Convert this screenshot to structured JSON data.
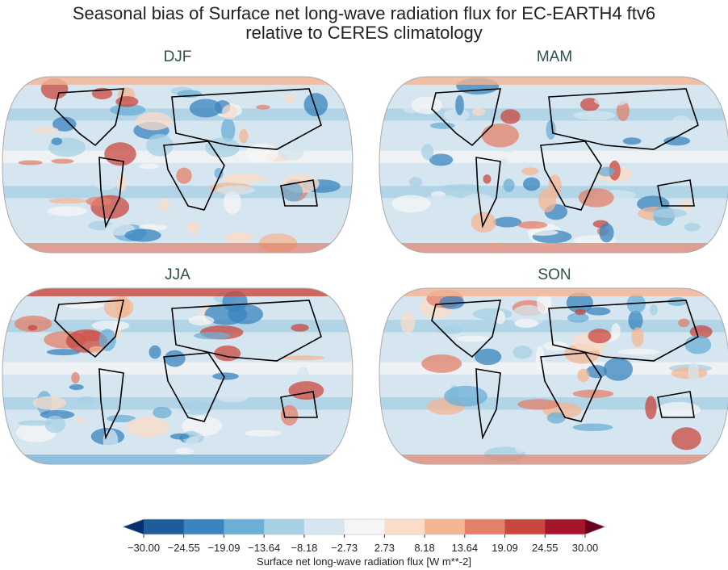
{
  "title_line1": "Seasonal bias of Surface net long-wave radiation flux for EC-EARTH4 ftv6",
  "title_line2": "relative to CERES climatology",
  "chart_data": {
    "type": "heatmap",
    "panels": [
      "DJF",
      "MAM",
      "JJA",
      "SON"
    ],
    "colorbar": {
      "label": "Surface net long-wave radiation flux [W m**-2]",
      "ticks": [
        "−30.00",
        "−24.55",
        "−19.09",
        "−13.64",
        "−8.18",
        "−2.73",
        "2.73",
        "8.18",
        "13.64",
        "19.09",
        "24.55",
        "30.00"
      ],
      "range": [
        -30,
        30
      ],
      "extend": "both",
      "colors": [
        "#053061",
        "#2166ac",
        "#4393c3",
        "#92c5de",
        "#d1e5f0",
        "#f7f7f7",
        "#fddbc7",
        "#f4a582",
        "#d6604d",
        "#b2182b",
        "#67001f"
      ],
      "colors_all": [
        "#08306b",
        "#1f5c9a",
        "#3a84bf",
        "#6cafd5",
        "#a7d0e4",
        "#d6e6f0",
        "#f5f5f5",
        "#fbdcc8",
        "#f4b593",
        "#e3806a",
        "#c9473f",
        "#a5162a",
        "#6a0020"
      ]
    }
  }
}
